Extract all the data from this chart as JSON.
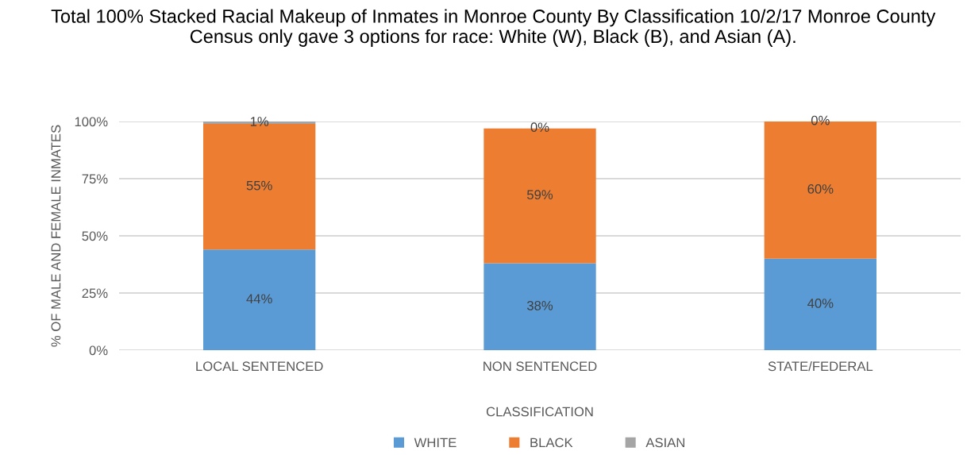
{
  "chart_data": {
    "type": "bar",
    "stacked": true,
    "title": "Total 100% Stacked Racial Makeup of Inmates in Monroe County By Classification 10/2/17 Monroe County Census only gave 3 options for race: White (W), Black (B), and Asian (A).",
    "xlabel": "CLASSIFICATION",
    "ylabel": "% OF MALE AND FEMALE INMATES",
    "categories": [
      "LOCAL SENTENCED",
      "NON SENTENCED",
      "STATE/FEDERAL"
    ],
    "series": [
      {
        "name": "WHITE",
        "color": "#5b9bd5",
        "values": [
          44,
          38,
          40
        ],
        "value_labels": [
          "44%",
          "38%",
          "40%"
        ]
      },
      {
        "name": "BLACK",
        "color": "#ed7d31",
        "values": [
          55,
          59,
          60
        ],
        "value_labels": [
          "55%",
          "59%",
          "60%"
        ]
      },
      {
        "name": "ASIAN",
        "color": "#a5a5a5",
        "values": [
          1,
          0,
          0
        ],
        "value_labels": [
          "1%",
          "0%",
          "0%"
        ]
      }
    ],
    "ylim": [
      0,
      100
    ],
    "yticks": [
      {
        "value": 0,
        "label": "0%"
      },
      {
        "value": 25,
        "label": "25%"
      },
      {
        "value": 50,
        "label": "50%"
      },
      {
        "value": 75,
        "label": "75%"
      },
      {
        "value": 100,
        "label": "100%"
      }
    ],
    "grid": "y",
    "legend": "bottom"
  }
}
